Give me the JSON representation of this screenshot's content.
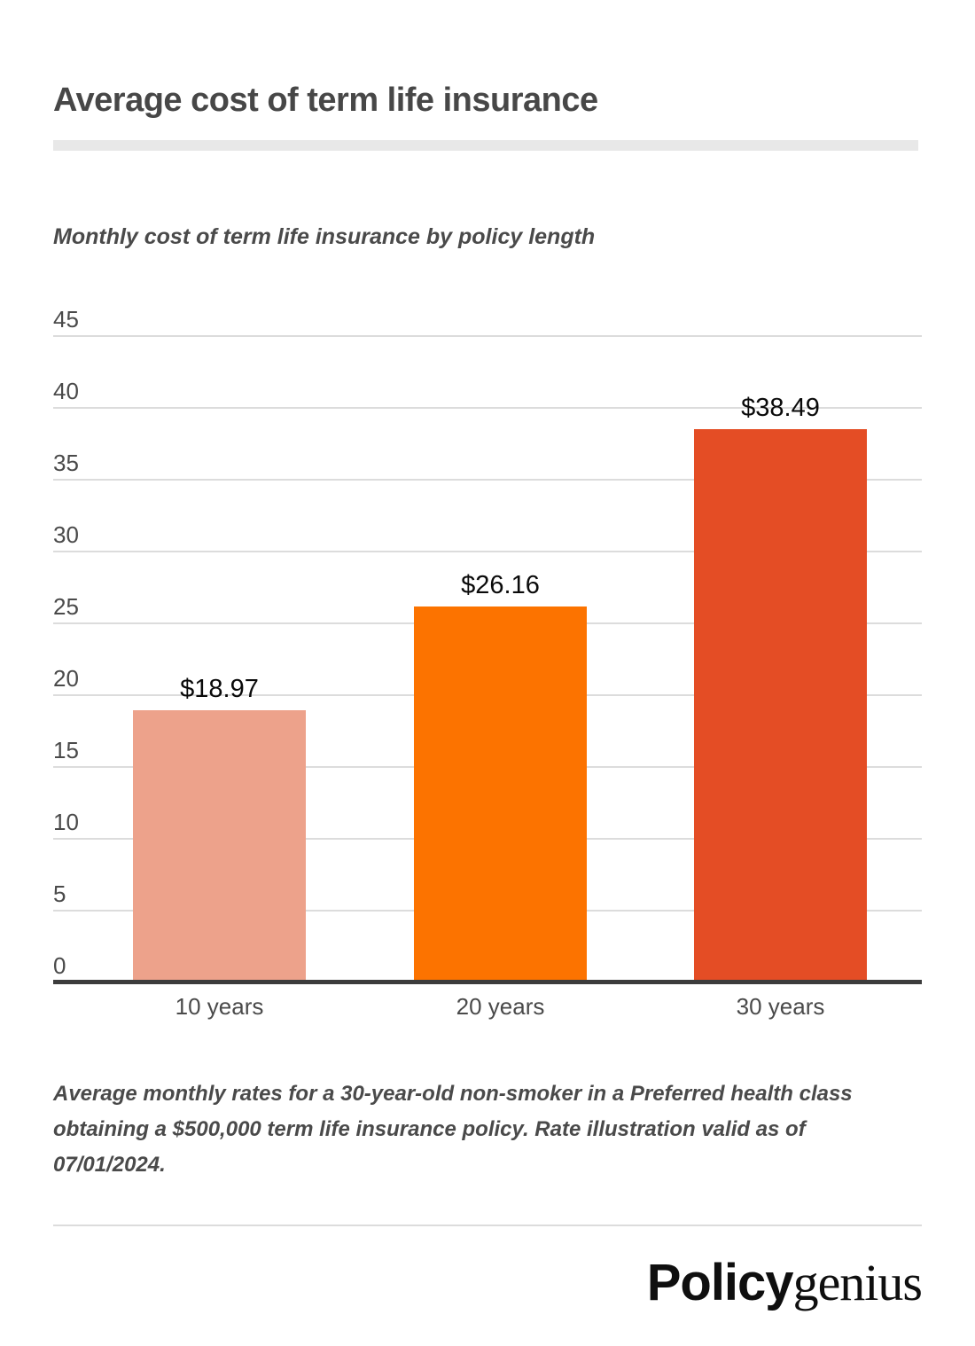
{
  "header": {
    "title": "Average cost of term life insurance"
  },
  "chart_data": {
    "type": "bar",
    "title": "Monthly cost of term life insurance by policy length",
    "categories": [
      "10 years",
      "20 years",
      "30 years"
    ],
    "values": [
      18.97,
      26.16,
      38.49
    ],
    "value_labels": [
      "$18.97",
      "$26.16",
      "$38.49"
    ],
    "bar_colors": [
      "#eda28b",
      "#fc7300",
      "#e44d25"
    ],
    "ylim": [
      0,
      45
    ],
    "yticks": [
      0,
      5,
      10,
      15,
      20,
      25,
      30,
      35,
      40,
      45
    ],
    "grid": true,
    "legend_position": "none",
    "xlabel": "",
    "ylabel": "",
    "colors": {
      "grid_line": "#dcdcdc",
      "axis_line": "#3c3c3c",
      "tick_label": "#4a4a4a",
      "value_label": "#0a0a0a",
      "title_text": "#474747",
      "divider": "#e8e8e8"
    }
  },
  "footnote": {
    "text": "Average monthly rates for a 30-year-old non-smoker in a Preferred health class obtaining a $500,000 term life insurance policy. Rate illustration valid as of 07/01/2024."
  },
  "branding": {
    "logo_part_bold": "Policy",
    "logo_part_serif": "genius"
  }
}
